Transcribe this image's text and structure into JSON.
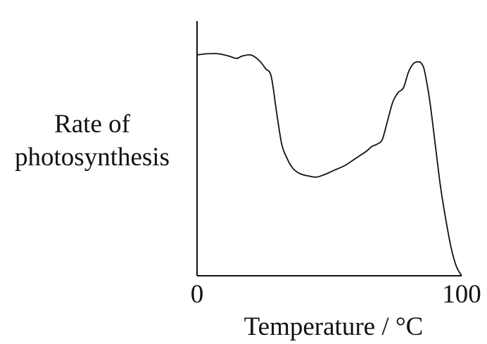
{
  "chart_data": {
    "type": "line",
    "title": "",
    "xlabel": "Temperature / °C",
    "ylabel_lines": [
      "Rate of",
      "photosynthesis"
    ],
    "x_ticks": [
      "0",
      "100"
    ],
    "xlim": [
      0,
      100
    ],
    "ylim": [
      0,
      1
    ],
    "y_ticks": [],
    "grid": false,
    "legend": "none",
    "axis_color": "#111111",
    "line_color": "#111111",
    "series": [
      {
        "x": [
          0,
          4,
          8,
          12,
          15,
          17,
          20,
          22,
          24,
          26,
          28,
          30,
          32,
          34,
          36,
          38,
          40,
          42,
          45,
          48,
          52,
          56,
          60,
          64,
          66,
          68,
          70,
          72,
          74,
          76,
          78,
          80,
          82,
          84,
          85,
          86,
          88,
          90,
          92,
          94,
          96,
          98,
          100
        ],
        "y": [
          0.94,
          0.945,
          0.945,
          0.935,
          0.925,
          0.935,
          0.94,
          0.93,
          0.91,
          0.88,
          0.85,
          0.7,
          0.56,
          0.5,
          0.46,
          0.44,
          0.43,
          0.425,
          0.42,
          0.43,
          0.45,
          0.47,
          0.5,
          0.53,
          0.55,
          0.56,
          0.58,
          0.66,
          0.74,
          0.78,
          0.8,
          0.87,
          0.905,
          0.91,
          0.9,
          0.87,
          0.74,
          0.56,
          0.38,
          0.24,
          0.12,
          0.04,
          0.0
        ]
      }
    ]
  }
}
